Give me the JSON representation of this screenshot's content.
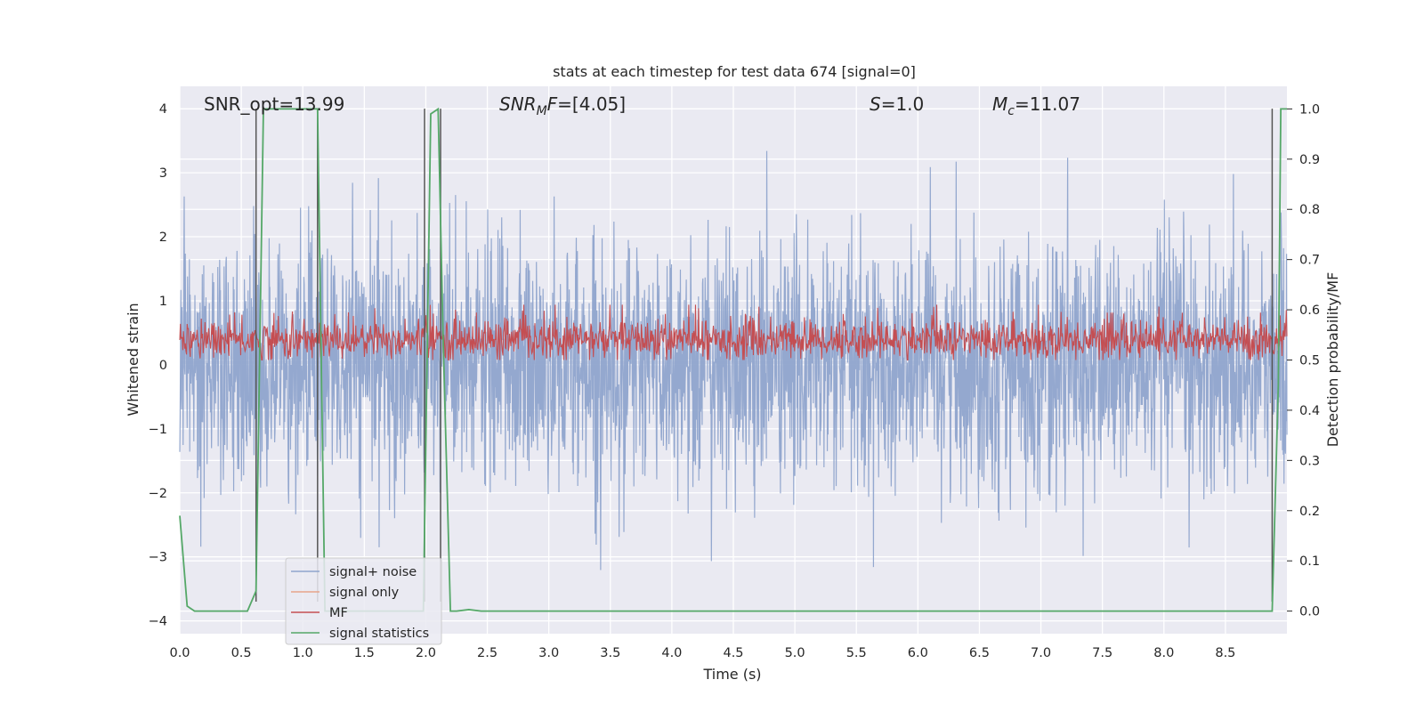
{
  "chart_data": {
    "type": "line",
    "title": "stats at each timestep for test data 674 [signal=0]",
    "xlabel": "Time (s)",
    "ylabel": "Whitened strain",
    "ylabel_right": "Detection probability/MF",
    "xlim": [
      0.0,
      9.0
    ],
    "ylim": [
      -4.2,
      4.35
    ],
    "ylim_right": [
      -0.045,
      1.045
    ],
    "xticks": [
      "0.0",
      "0.5",
      "1.0",
      "1.5",
      "2.0",
      "2.5",
      "3.0",
      "3.5",
      "4.0",
      "4.5",
      "5.0",
      "5.5",
      "6.0",
      "6.5",
      "7.0",
      "7.5",
      "8.0",
      "8.5"
    ],
    "yticks": [
      "4",
      "3",
      "2",
      "1",
      "0",
      "−1",
      "−2",
      "−3",
      "−4"
    ],
    "yticks_right": [
      "1.0",
      "0.9",
      "0.8",
      "0.7",
      "0.6",
      "0.5",
      "0.4",
      "0.3",
      "0.2",
      "0.1",
      "0.0"
    ],
    "grid": true,
    "legend_placement": "lower-left",
    "annotations": {
      "snr_opt": "SNR_opt=13.99",
      "snr_mf_sym": "SNR",
      "snr_mf_sub": "M",
      "snr_mf_sym2": "F",
      "snr_mf_val": "=[4.05]",
      "s_sym": "S",
      "s_val": "=1.0",
      "mc_sym": "M",
      "mc_sub": "c",
      "mc_val": "=11.07"
    },
    "series": [
      {
        "name": "signal+ noise",
        "color": "#8fa4cc",
        "description_values": "white Gaussian noise, |y| up to ~4, spanning 0–9 s",
        "ylim": [
          -3.8,
          4.0
        ]
      },
      {
        "name": "signal only",
        "color": "#e8a48a",
        "values": []
      },
      {
        "name": "MF",
        "color": "#c44e52",
        "axis": "right",
        "range": [
          0.5,
          0.6
        ]
      },
      {
        "name": "signal statistics",
        "color": "#55a868",
        "axis": "right",
        "x": [
          0.0,
          0.06,
          0.12,
          0.55,
          0.62,
          0.68,
          0.75,
          1.05,
          1.12,
          1.18,
          1.5,
          1.8,
          1.98,
          2.04,
          2.1,
          2.14,
          2.2,
          2.25,
          2.35,
          2.45,
          2.5,
          3.0,
          8.88,
          8.93,
          8.95,
          9.0
        ],
        "y": [
          0.19,
          0.01,
          0.0,
          0.0,
          0.04,
          1.0,
          1.0,
          1.0,
          1.0,
          0.0,
          0.0,
          0.0,
          0.0,
          0.99,
          1.0,
          0.55,
          0.0,
          0.0,
          0.003,
          0.0,
          0.0,
          0.0,
          0.0,
          0.45,
          1.0,
          1.0
        ]
      }
    ],
    "vlines_x": [
      0.62,
      1.12,
      1.99,
      2.12,
      8.88
    ]
  }
}
